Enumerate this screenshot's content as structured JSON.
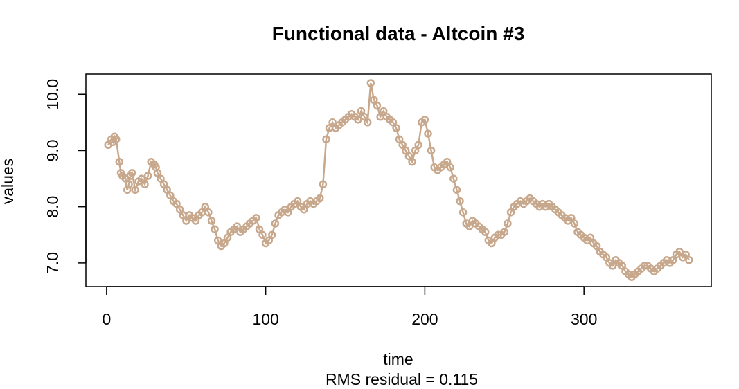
{
  "chart_data": {
    "type": "line",
    "title": "Functional data - Altcoin #3",
    "xlabel": "time",
    "ylabel": "values",
    "subtitle": "RMS residual = 0.115",
    "xlim": [
      -13,
      380
    ],
    "ylim": [
      6.58,
      10.36
    ],
    "x_ticks": [
      0,
      100,
      200,
      300
    ],
    "x_tick_labels": [
      "0",
      "100",
      "200",
      "300"
    ],
    "y_ticks": [
      7,
      8,
      9,
      10
    ],
    "y_tick_labels": [
      "7.0",
      "8.0",
      "9.0",
      "10.0"
    ],
    "grid": false,
    "series": [
      {
        "color": "#c8a88c",
        "marker": "open-circle",
        "points": [
          [
            1,
            9.1
          ],
          [
            3,
            9.2
          ],
          [
            4,
            9.15
          ],
          [
            5,
            9.25
          ],
          [
            6,
            9.2
          ],
          [
            8,
            8.8
          ],
          [
            9,
            8.6
          ],
          [
            10,
            8.55
          ],
          [
            12,
            8.5
          ],
          [
            13,
            8.3
          ],
          [
            14,
            8.4
          ],
          [
            15,
            8.55
          ],
          [
            16,
            8.6
          ],
          [
            18,
            8.3
          ],
          [
            20,
            8.45
          ],
          [
            22,
            8.5
          ],
          [
            24,
            8.4
          ],
          [
            26,
            8.55
          ],
          [
            28,
            8.8
          ],
          [
            30,
            8.75
          ],
          [
            31,
            8.7
          ],
          [
            32,
            8.6
          ],
          [
            34,
            8.5
          ],
          [
            36,
            8.4
          ],
          [
            38,
            8.3
          ],
          [
            40,
            8.2
          ],
          [
            42,
            8.1
          ],
          [
            44,
            8.05
          ],
          [
            46,
            7.95
          ],
          [
            48,
            7.85
          ],
          [
            50,
            7.75
          ],
          [
            52,
            7.85
          ],
          [
            54,
            7.8
          ],
          [
            56,
            7.75
          ],
          [
            58,
            7.85
          ],
          [
            60,
            7.9
          ],
          [
            62,
            8.0
          ],
          [
            64,
            7.9
          ],
          [
            66,
            7.75
          ],
          [
            68,
            7.6
          ],
          [
            70,
            7.4
          ],
          [
            72,
            7.3
          ],
          [
            74,
            7.35
          ],
          [
            76,
            7.45
          ],
          [
            78,
            7.55
          ],
          [
            80,
            7.6
          ],
          [
            82,
            7.65
          ],
          [
            84,
            7.55
          ],
          [
            86,
            7.6
          ],
          [
            88,
            7.65
          ],
          [
            90,
            7.7
          ],
          [
            92,
            7.75
          ],
          [
            94,
            7.8
          ],
          [
            96,
            7.6
          ],
          [
            98,
            7.5
          ],
          [
            100,
            7.35
          ],
          [
            102,
            7.4
          ],
          [
            104,
            7.5
          ],
          [
            106,
            7.7
          ],
          [
            108,
            7.85
          ],
          [
            110,
            7.9
          ],
          [
            112,
            7.95
          ],
          [
            114,
            7.9
          ],
          [
            116,
            8.0
          ],
          [
            118,
            8.05
          ],
          [
            120,
            8.1
          ],
          [
            122,
            8.0
          ],
          [
            124,
            7.95
          ],
          [
            126,
            8.05
          ],
          [
            128,
            8.1
          ],
          [
            130,
            8.05
          ],
          [
            132,
            8.1
          ],
          [
            134,
            8.15
          ],
          [
            136,
            8.4
          ],
          [
            138,
            9.2
          ],
          [
            140,
            9.4
          ],
          [
            142,
            9.5
          ],
          [
            144,
            9.4
          ],
          [
            146,
            9.45
          ],
          [
            148,
            9.5
          ],
          [
            150,
            9.55
          ],
          [
            152,
            9.6
          ],
          [
            154,
            9.65
          ],
          [
            156,
            9.6
          ],
          [
            158,
            9.55
          ],
          [
            160,
            9.7
          ],
          [
            162,
            9.6
          ],
          [
            164,
            9.5
          ],
          [
            166,
            10.2
          ],
          [
            168,
            9.9
          ],
          [
            170,
            9.8
          ],
          [
            172,
            9.6
          ],
          [
            174,
            9.7
          ],
          [
            176,
            9.6
          ],
          [
            178,
            9.55
          ],
          [
            180,
            9.5
          ],
          [
            182,
            9.4
          ],
          [
            184,
            9.2
          ],
          [
            186,
            9.1
          ],
          [
            188,
            9.0
          ],
          [
            190,
            8.9
          ],
          [
            192,
            8.8
          ],
          [
            194,
            9.0
          ],
          [
            196,
            9.1
          ],
          [
            198,
            9.5
          ],
          [
            200,
            9.55
          ],
          [
            202,
            9.3
          ],
          [
            204,
            9.0
          ],
          [
            206,
            8.7
          ],
          [
            208,
            8.65
          ],
          [
            210,
            8.7
          ],
          [
            212,
            8.75
          ],
          [
            214,
            8.8
          ],
          [
            216,
            8.7
          ],
          [
            218,
            8.5
          ],
          [
            220,
            8.3
          ],
          [
            222,
            8.1
          ],
          [
            224,
            7.9
          ],
          [
            226,
            7.7
          ],
          [
            228,
            7.65
          ],
          [
            230,
            7.75
          ],
          [
            232,
            7.7
          ],
          [
            234,
            7.65
          ],
          [
            236,
            7.6
          ],
          [
            238,
            7.55
          ],
          [
            240,
            7.4
          ],
          [
            242,
            7.35
          ],
          [
            244,
            7.45
          ],
          [
            246,
            7.5
          ],
          [
            248,
            7.5
          ],
          [
            250,
            7.55
          ],
          [
            252,
            7.7
          ],
          [
            254,
            7.9
          ],
          [
            256,
            8.0
          ],
          [
            258,
            8.05
          ],
          [
            260,
            8.1
          ],
          [
            262,
            8.05
          ],
          [
            264,
            8.1
          ],
          [
            266,
            8.15
          ],
          [
            268,
            8.1
          ],
          [
            270,
            8.05
          ],
          [
            272,
            8.0
          ],
          [
            274,
            8.05
          ],
          [
            276,
            8.0
          ],
          [
            278,
            8.05
          ],
          [
            280,
            8.0
          ],
          [
            282,
            7.95
          ],
          [
            284,
            7.9
          ],
          [
            286,
            7.85
          ],
          [
            288,
            7.8
          ],
          [
            290,
            7.75
          ],
          [
            292,
            7.8
          ],
          [
            294,
            7.7
          ],
          [
            296,
            7.55
          ],
          [
            298,
            7.5
          ],
          [
            300,
            7.45
          ],
          [
            302,
            7.4
          ],
          [
            304,
            7.45
          ],
          [
            306,
            7.35
          ],
          [
            308,
            7.3
          ],
          [
            310,
            7.2
          ],
          [
            312,
            7.15
          ],
          [
            314,
            7.1
          ],
          [
            316,
            7.0
          ],
          [
            318,
            6.95
          ],
          [
            320,
            7.05
          ],
          [
            322,
            7.0
          ],
          [
            324,
            6.95
          ],
          [
            326,
            6.85
          ],
          [
            328,
            6.8
          ],
          [
            330,
            6.75
          ],
          [
            332,
            6.8
          ],
          [
            334,
            6.85
          ],
          [
            336,
            6.9
          ],
          [
            338,
            6.95
          ],
          [
            340,
            6.95
          ],
          [
            342,
            6.9
          ],
          [
            344,
            6.85
          ],
          [
            346,
            6.9
          ],
          [
            348,
            6.95
          ],
          [
            350,
            7.0
          ],
          [
            352,
            7.05
          ],
          [
            354,
            7.0
          ],
          [
            356,
            7.05
          ],
          [
            358,
            7.15
          ],
          [
            360,
            7.2
          ],
          [
            362,
            7.1
          ],
          [
            364,
            7.15
          ],
          [
            366,
            7.05
          ]
        ]
      }
    ]
  }
}
